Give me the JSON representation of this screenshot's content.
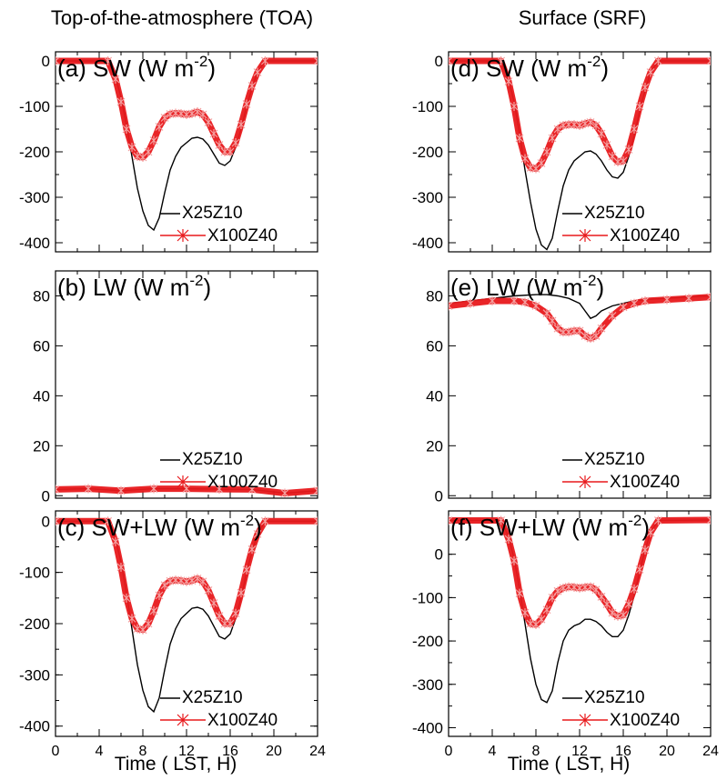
{
  "column_titles": [
    "Top-of-the-atmosphere (TOA)",
    "Surface (SRF)"
  ],
  "colors": {
    "x25z10": "#000000",
    "x100z40": "#e8191c"
  },
  "chart_data": [
    {
      "type": "line",
      "panel": "(a) SW (W m^-2)",
      "title": "(a) SW (W m",
      "title_sup": "-2",
      "title_tail": ")",
      "xlim": [
        0,
        24
      ],
      "ylim": [
        -420,
        20
      ],
      "xticks": [
        0,
        4,
        8,
        12,
        16,
        20,
        24
      ],
      "yticks": [
        0,
        -100,
        -200,
        -300,
        -400
      ],
      "xlabel": "",
      "legend": [
        "X25Z10",
        "X100Z40"
      ],
      "series": [
        {
          "name": "X25Z10",
          "x": [
            0,
            4.8,
            5.5,
            6,
            6.5,
            7,
            7.5,
            8,
            8.5,
            9,
            9.5,
            10,
            10.5,
            11,
            11.5,
            12,
            12.5,
            13,
            13.5,
            14,
            14.5,
            15,
            15.5,
            16,
            16.5,
            17,
            17.5,
            18,
            18.5,
            19.2,
            24
          ],
          "y": [
            0,
            0,
            -35,
            -80,
            -140,
            -210,
            -280,
            -330,
            -362,
            -372,
            -345,
            -290,
            -240,
            -210,
            -190,
            -180,
            -170,
            -168,
            -172,
            -185,
            -205,
            -225,
            -230,
            -220,
            -190,
            -150,
            -100,
            -60,
            -25,
            0,
            0
          ]
        },
        {
          "name": "X100Z40",
          "x": [
            0,
            4.8,
            5.5,
            6,
            6.5,
            7,
            7.5,
            8,
            8.5,
            9,
            9.5,
            10,
            10.5,
            11,
            11.5,
            12,
            12.5,
            13,
            13.5,
            14,
            14.5,
            15,
            15.5,
            16,
            16.5,
            17,
            17.5,
            18,
            18.5,
            19.2,
            24
          ],
          "y": [
            0,
            0,
            -40,
            -90,
            -150,
            -190,
            -210,
            -212,
            -200,
            -175,
            -145,
            -125,
            -117,
            -115,
            -116,
            -118,
            -116,
            -112,
            -118,
            -135,
            -160,
            -185,
            -200,
            -200,
            -180,
            -140,
            -95,
            -55,
            -25,
            0,
            0
          ]
        }
      ]
    },
    {
      "type": "line",
      "panel": "(b) LW (W m^-2)",
      "title": "(b) LW (W m",
      "title_sup": "-2",
      "title_tail": ")",
      "xlim": [
        0,
        24
      ],
      "ylim": [
        -1,
        90
      ],
      "xticks": [
        0,
        4,
        8,
        12,
        16,
        20,
        24
      ],
      "yticks": [
        0,
        20,
        40,
        60,
        80
      ],
      "xlabel": "",
      "legend": [
        "X25Z10",
        "X100Z40"
      ],
      "series": [
        {
          "name": "X25Z10",
          "x": [
            0,
            3,
            6,
            9,
            12,
            15,
            18,
            21,
            24
          ],
          "y": [
            2.5,
            2.8,
            2.0,
            2.8,
            2.8,
            2.6,
            2.5,
            1.0,
            2.0
          ]
        },
        {
          "name": "X100Z40",
          "x": [
            0,
            3,
            6,
            9,
            12,
            15,
            18,
            21,
            24
          ],
          "y": [
            2.5,
            2.8,
            2.0,
            2.8,
            2.8,
            2.6,
            2.5,
            1.0,
            2.0
          ]
        }
      ]
    },
    {
      "type": "line",
      "panel": "(c) SW+LW (W m^-2)",
      "title": "(c) SW+LW (W m",
      "title_sup": "-2",
      "title_tail": ")",
      "xlim": [
        0,
        24
      ],
      "ylim": [
        -420,
        20
      ],
      "xticks": [
        0,
        4,
        8,
        12,
        16,
        20,
        24
      ],
      "yticks": [
        0,
        -100,
        -200,
        -300,
        -400
      ],
      "xlabel": "Time ( LST, H)",
      "legend": [
        "X25Z10",
        "X100Z40"
      ],
      "series": [
        {
          "name": "X25Z10",
          "x": [
            0,
            4.8,
            5.5,
            6,
            6.5,
            7,
            7.5,
            8,
            8.5,
            9,
            9.5,
            10,
            10.5,
            11,
            11.5,
            12,
            12.5,
            13,
            13.5,
            14,
            14.5,
            15,
            15.5,
            16,
            16.5,
            17,
            17.5,
            18,
            18.5,
            19.2,
            24
          ],
          "y": [
            0,
            0,
            -35,
            -80,
            -140,
            -210,
            -280,
            -330,
            -362,
            -372,
            -345,
            -290,
            -240,
            -210,
            -190,
            -180,
            -170,
            -168,
            -172,
            -185,
            -205,
            -225,
            -230,
            -220,
            -190,
            -150,
            -100,
            -60,
            -25,
            0,
            0
          ]
        },
        {
          "name": "X100Z40",
          "x": [
            0,
            4.8,
            5.5,
            6,
            6.5,
            7,
            7.5,
            8,
            8.5,
            9,
            9.5,
            10,
            10.5,
            11,
            11.5,
            12,
            12.5,
            13,
            13.5,
            14,
            14.5,
            15,
            15.5,
            16,
            16.5,
            17,
            17.5,
            18,
            18.5,
            19.2,
            24
          ],
          "y": [
            0,
            0,
            -40,
            -90,
            -150,
            -190,
            -210,
            -212,
            -200,
            -175,
            -145,
            -125,
            -117,
            -115,
            -116,
            -118,
            -116,
            -112,
            -118,
            -135,
            -160,
            -185,
            -200,
            -200,
            -180,
            -140,
            -95,
            -55,
            -25,
            0,
            0
          ]
        }
      ]
    },
    {
      "type": "line",
      "panel": "(d) SW (W m^-2)",
      "title": "(d) SW (W m",
      "title_sup": "-2",
      "title_tail": ")",
      "xlim": [
        0,
        24
      ],
      "ylim": [
        -420,
        20
      ],
      "xticks": [
        0,
        4,
        8,
        12,
        16,
        20,
        24
      ],
      "yticks": [
        0,
        -100,
        -200,
        -300,
        -400
      ],
      "xlabel": "",
      "legend": [
        "X25Z10",
        "X100Z40"
      ],
      "series": [
        {
          "name": "X25Z10",
          "x": [
            0,
            4.8,
            5.5,
            6,
            6.5,
            7,
            7.5,
            8,
            8.5,
            9,
            9.5,
            10,
            10.5,
            11,
            11.5,
            12,
            12.5,
            13,
            13.5,
            14,
            14.5,
            15,
            15.5,
            16,
            16.5,
            17,
            17.5,
            18,
            18.5,
            19.2,
            24
          ],
          "y": [
            0,
            0,
            -40,
            -90,
            -160,
            -240,
            -310,
            -370,
            -405,
            -415,
            -390,
            -330,
            -275,
            -240,
            -220,
            -210,
            -200,
            -198,
            -205,
            -220,
            -240,
            -255,
            -258,
            -245,
            -210,
            -165,
            -110,
            -65,
            -25,
            0,
            0
          ]
        },
        {
          "name": "X100Z40",
          "x": [
            0,
            4.8,
            5.5,
            6,
            6.5,
            7,
            7.5,
            8,
            8.5,
            9,
            9.5,
            10,
            10.5,
            11,
            11.5,
            12,
            12.5,
            13,
            13.5,
            14,
            14.5,
            15,
            15.5,
            16,
            16.5,
            17,
            17.5,
            18,
            18.5,
            19.2,
            24
          ],
          "y": [
            0,
            0,
            -45,
            -100,
            -170,
            -215,
            -235,
            -237,
            -225,
            -200,
            -170,
            -150,
            -142,
            -140,
            -140,
            -142,
            -138,
            -135,
            -142,
            -160,
            -185,
            -210,
            -222,
            -220,
            -195,
            -150,
            -100,
            -58,
            -25,
            0,
            0
          ]
        }
      ]
    },
    {
      "type": "line",
      "panel": "(e) LW (W m^-2)",
      "title": "(e) LW (W m",
      "title_sup": "-2",
      "title_tail": ")",
      "xlim": [
        0,
        24
      ],
      "ylim": [
        -1,
        90
      ],
      "xticks": [
        0,
        4,
        8,
        12,
        16,
        20,
        24
      ],
      "yticks": [
        0,
        20,
        40,
        60,
        80
      ],
      "xlabel": "",
      "legend": [
        "X25Z10",
        "X100Z40"
      ],
      "series": [
        {
          "name": "X25Z10",
          "x": [
            0,
            2,
            4,
            6,
            8,
            9,
            10,
            11,
            12,
            12.5,
            13,
            13.5,
            14,
            15,
            16,
            17,
            18,
            20,
            22,
            24
          ],
          "y": [
            77,
            78,
            79,
            80,
            80.5,
            80.5,
            80,
            79,
            77,
            74,
            71,
            72,
            74,
            76,
            77,
            78,
            78.5,
            79,
            79.5,
            80
          ]
        },
        {
          "name": "X100Z40",
          "x": [
            0,
            2,
            4,
            6,
            7,
            8,
            9,
            9.5,
            10,
            10.5,
            11,
            11.5,
            12,
            12.5,
            13,
            13.5,
            14,
            15,
            16,
            17,
            18,
            20,
            22,
            24
          ],
          "y": [
            76,
            77,
            78,
            78,
            77.5,
            76,
            73,
            70,
            67,
            65.5,
            65.5,
            66,
            66,
            64,
            63,
            64,
            67,
            72,
            75.5,
            77,
            78,
            78.5,
            79,
            79.5
          ]
        }
      ]
    },
    {
      "type": "line",
      "panel": "(f) SW+LW (W m^-2)",
      "title": "(f) SW+LW (W m",
      "title_sup": "-2",
      "title_tail": ")",
      "xlim": [
        0,
        24
      ],
      "ylim": [
        -420,
        100
      ],
      "xticks": [
        0,
        4,
        8,
        12,
        16,
        20,
        24
      ],
      "yticks": [
        0,
        -100,
        -200,
        -300,
        -400
      ],
      "xlabel": "Time ( LST, H)",
      "legend": [
        "X25Z10",
        "X100Z40"
      ],
      "series": [
        {
          "name": "X25Z10",
          "x": [
            0,
            4.8,
            5.5,
            6,
            6.5,
            7,
            7.5,
            8,
            8.5,
            9,
            9.5,
            10,
            10.5,
            11,
            11.5,
            12,
            12.5,
            13,
            13.5,
            14,
            14.5,
            15,
            15.5,
            16,
            16.5,
            17,
            17.5,
            18,
            18.5,
            19.2,
            24
          ],
          "y": [
            78,
            78,
            40,
            -10,
            -80,
            -160,
            -240,
            -300,
            -335,
            -342,
            -315,
            -250,
            -200,
            -175,
            -165,
            -160,
            -150,
            -150,
            -155,
            -165,
            -180,
            -190,
            -190,
            -175,
            -140,
            -95,
            -40,
            10,
            50,
            78,
            79
          ]
        },
        {
          "name": "X100Z40",
          "x": [
            0,
            4.8,
            5.5,
            6,
            6.5,
            7,
            7.5,
            8,
            8.5,
            9,
            9.5,
            10,
            10.5,
            11,
            11.5,
            12,
            12.5,
            13,
            13.5,
            14,
            14.5,
            15,
            15.5,
            16,
            16.5,
            17,
            17.5,
            18,
            18.5,
            19.2,
            24
          ],
          "y": [
            78,
            78,
            35,
            -15,
            -90,
            -135,
            -160,
            -162,
            -150,
            -128,
            -100,
            -85,
            -78,
            -75,
            -76,
            -78,
            -76,
            -75,
            -82,
            -98,
            -115,
            -135,
            -143,
            -140,
            -115,
            -80,
            -35,
            10,
            50,
            78,
            79
          ]
        }
      ]
    }
  ]
}
